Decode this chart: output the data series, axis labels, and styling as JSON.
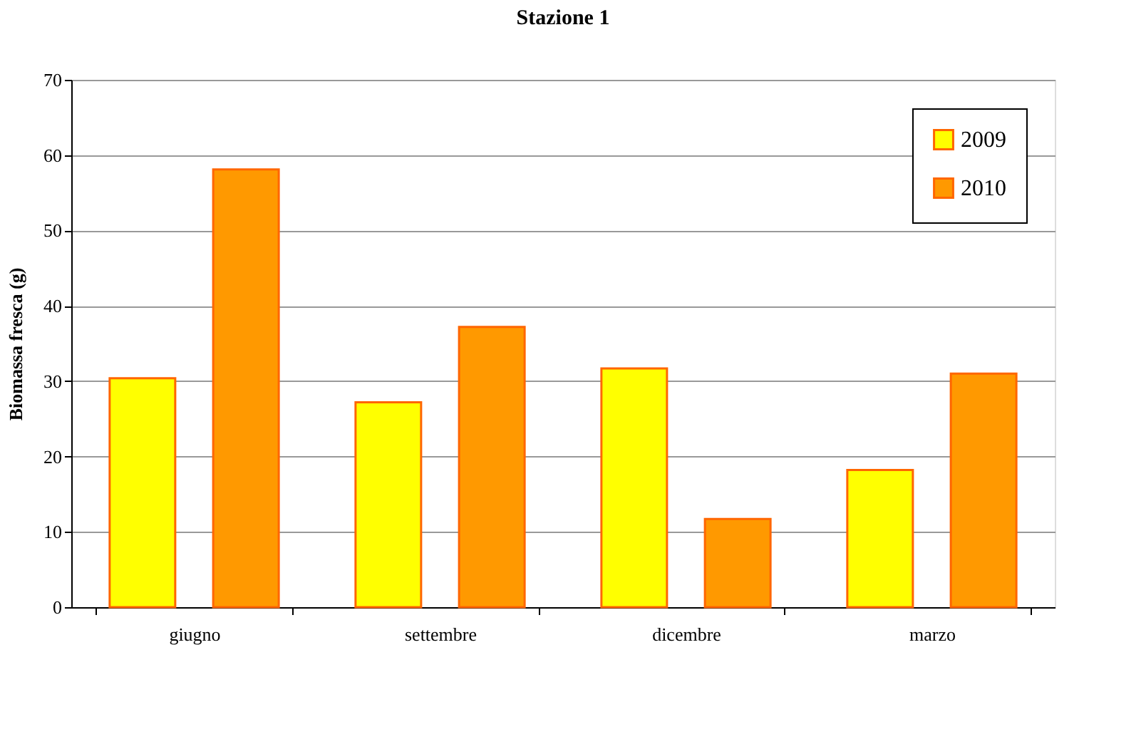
{
  "chart_data": {
    "type": "bar",
    "title": "Stazione 1",
    "ylabel": "Biomassa fresca (g)",
    "categories": [
      "giugno",
      "settembre",
      "dicembre",
      "marzo"
    ],
    "series": [
      {
        "name": "2009",
        "color": "#ffff00",
        "values": [
          30.4,
          27.2,
          31.7,
          18.2
        ]
      },
      {
        "name": "2010",
        "color": "#ff9900",
        "values": [
          58.1,
          37.2,
          11.7,
          31.0
        ]
      }
    ],
    "ylim": [
      0,
      70
    ],
    "yticks": [
      0,
      10,
      20,
      30,
      40,
      50,
      60,
      70
    ],
    "grid": "y",
    "legend": "top right"
  }
}
